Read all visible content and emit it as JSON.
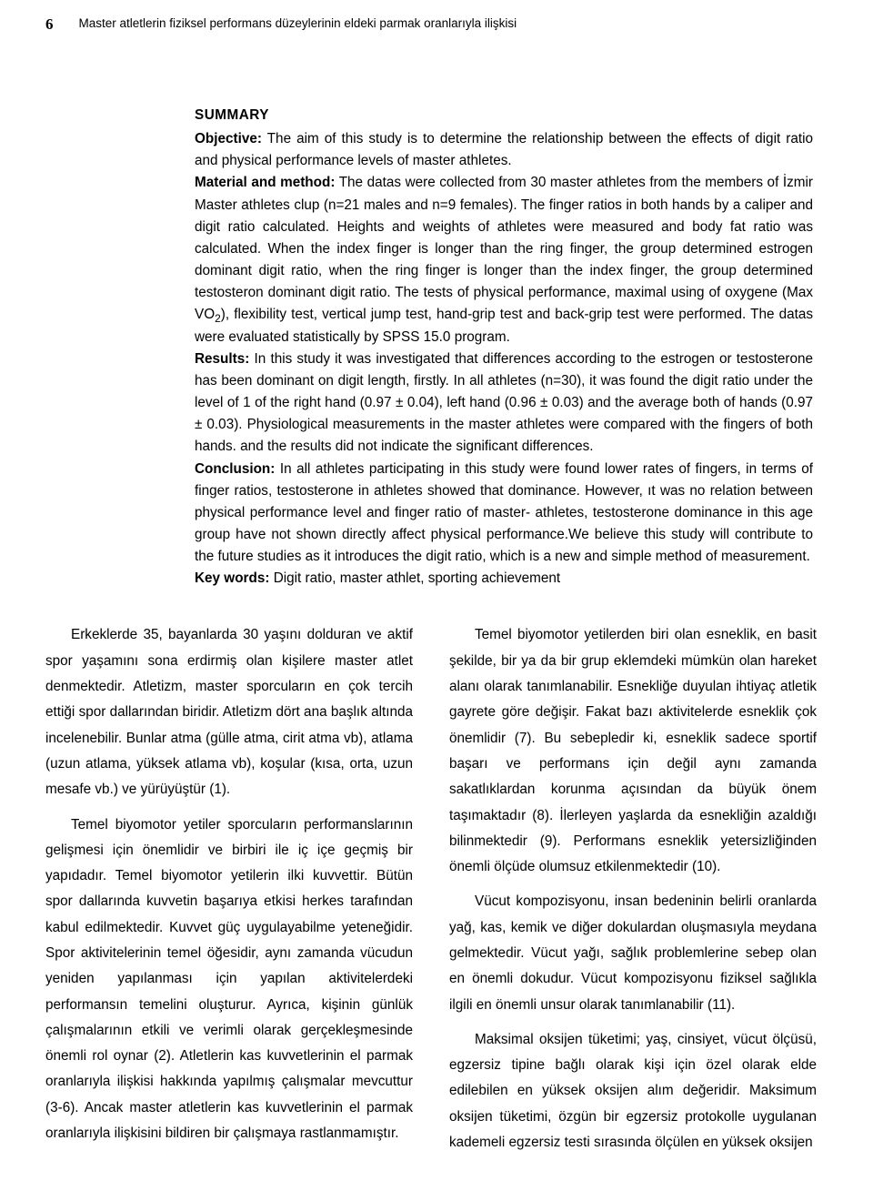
{
  "header": {
    "page_number": "6",
    "running_title": "Master atletlerin fiziksel performans düzeylerinin eldeki parmak oranlarıyla ilişkisi"
  },
  "summary": {
    "title": "SUMMARY",
    "objective_label": "Objective:",
    "objective_text": " The aim of this study is to determine the relationship between the effects of digit ratio and physical performance levels of master athletes.",
    "material_label": "Material and method:",
    "material_text": " The datas were collected from 30 master athletes from the members of İzmir Master athletes clup (n=21 males and n=9 females). The finger ratios in both hands by a caliper and digit ratio calculated. Heights and weights of athletes were measured and body fat ratio was calculated. When the index finger is longer than the ring finger, the group determined estrogen dominant digit ratio, when the ring finger is longer than the index finger, the group determined testosteron dominant digit ratio. The tests of physical performance, maximal using of oxygene (Max VO",
    "material_text_after_sub": "), flexibility test, vertical jump test, hand-grip test and back-grip test were performed. The datas were evaluated statistically by SPSS 15.0 program.",
    "sub_2": "2",
    "results_label": "Results:",
    "results_text": " In this study it was investigated that differences according to the estrogen or testosterone has been dominant on digit length, firstly. In all athletes (n=30), it was found the digit ratio under the level of 1 of the right hand (0.97 ± 0.04), left hand (0.96 ± 0.03) and the average both of hands (0.97 ± 0.03). Physiological measurements in the master athletes were compared with the fingers of both hands. and the results did not indicate the significant differences.",
    "conclusion_label": "Conclusion:",
    "conclusion_text": " In all athletes participating in this study were found lower rates of fingers, in terms of finger ratios, testosterone in athletes showed that dominance. However, ıt was no relation between physical performance level and finger ratio of master- athletes, testosterone dominance in this age group have not shown directly affect physical performance.We believe this study will contribute to the future studies as it introduces the digit ratio, which is a new and simple method of measurement.",
    "keywords_label": "Key words:",
    "keywords_text": " Digit ratio, master athlet, sporting achievement"
  },
  "body": {
    "left": {
      "p1": "Erkeklerde 35, bayanlarda 30 yaşını dolduran ve aktif spor yaşamını sona erdirmiş olan kişilere master atlet denmektedir. Atletizm, master sporcuların en çok tercih ettiği spor dallarından biridir. Atletizm dört ana başlık altında incelenebilir. Bunlar atma (gülle atma, cirit atma vb), atlama (uzun atlama, yüksek atlama vb), koşular (kısa, orta, uzun mesafe vb.) ve yürüyüştür (1).",
      "p2": "Temel biyomotor yetiler sporcuların performanslarının gelişmesi için önemlidir ve birbiri ile iç içe geçmiş bir yapıdadır. Temel biyomotor yetilerin ilki kuvvettir. Bütün spor dallarında kuvvetin başarıya etkisi herkes tarafından kabul edilmektedir. Kuvvet güç uygulayabilme yeteneğidir. Spor aktivitelerinin temel öğesidir, aynı zamanda vücudun yeniden yapılanması için yapılan aktivitelerdeki performansın temelini oluşturur. Ayrıca, kişinin günlük çalışmalarının etkili ve verimli olarak gerçekleşmesinde önemli rol oynar (2). Atletlerin kas kuvvetlerinin el parmak oranlarıyla ilişkisi hakkında yapılmış çalışmalar mevcuttur (3-6). Ancak master atletlerin kas kuvvetlerinin el parmak oranlarıyla ilişkisini bildiren bir çalışmaya rastlanmamıştır."
    },
    "right": {
      "p1": "Temel biyomotor yetilerden biri olan esneklik, en basit şekilde, bir ya da bir grup eklemdeki mümkün olan hareket alanı olarak tanımlanabilir. Esnekliğe duyulan ihtiyaç atletik gayrete göre değişir. Fakat bazı aktivitelerde esneklik çok önemlidir (7). Bu sebepledir ki, esneklik sadece sportif başarı ve performans için değil aynı zamanda sakatlıklardan korunma açısından da büyük önem taşımaktadır (8). İlerleyen yaşlarda da esnekliğin azaldığı bilinmektedir (9). Performans esneklik yetersizliğinden önemli ölçüde olumsuz etkilenmektedir (10).",
      "p2": "Vücut kompozisyonu, insan bedeninin belirli oranlarda yağ, kas, kemik ve diğer dokulardan oluşmasıyla meydana gelmektedir. Vücut yağı, sağlık problemlerine sebep olan en önemli dokudur. Vücut kompozisyonu fiziksel sağlıkla ilgili en önemli unsur olarak tanımlanabilir (11).",
      "p3": "Maksimal oksijen tüketimi; yaş, cinsiyet, vücut ölçüsü, egzersiz tipine bağlı olarak kişi için özel olarak elde edilebilen en yüksek oksijen alım değeridir. Maksimum oksijen tüketimi, özgün bir egzersiz protokolle uygulanan kademeli egzersiz testi sırasında ölçülen en yüksek oksijen"
    }
  }
}
